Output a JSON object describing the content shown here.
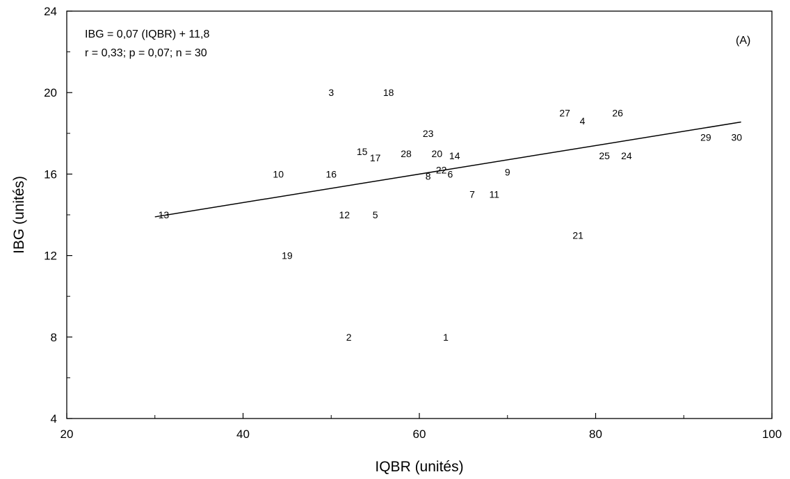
{
  "chart_data": {
    "type": "scatter",
    "xlabel": "IQBR (unités)",
    "ylabel": "IBG (unités)",
    "xlim": [
      20,
      100
    ],
    "ylim": [
      4,
      24
    ],
    "xticks": [
      20,
      40,
      60,
      80,
      100
    ],
    "yticks": [
      4,
      8,
      12,
      16,
      20,
      24
    ],
    "grid": false,
    "panel_label": "(A)",
    "annotations": [
      "IBG = 0,07 (IQBR) + 11,8",
      "r =  0,33;  p = 0,07;  n = 30"
    ],
    "regression": {
      "slope": 0.07,
      "intercept": 11.8,
      "x_range": [
        30,
        96.5
      ]
    },
    "points": [
      {
        "label": "1",
        "x": 63,
        "y": 8
      },
      {
        "label": "2",
        "x": 52,
        "y": 8
      },
      {
        "label": "3",
        "x": 50,
        "y": 20
      },
      {
        "label": "4",
        "x": 78.5,
        "y": 18.6
      },
      {
        "label": "5",
        "x": 55,
        "y": 14
      },
      {
        "label": "6",
        "x": 63.5,
        "y": 16
      },
      {
        "label": "7",
        "x": 66,
        "y": 15
      },
      {
        "label": "8",
        "x": 61,
        "y": 15.9
      },
      {
        "label": "9",
        "x": 70,
        "y": 16.1
      },
      {
        "label": "10",
        "x": 44,
        "y": 16
      },
      {
        "label": "11",
        "x": 68.5,
        "y": 15
      },
      {
        "label": "12",
        "x": 51.5,
        "y": 14
      },
      {
        "label": "13",
        "x": 31,
        "y": 14
      },
      {
        "label": "14",
        "x": 64,
        "y": 16.9
      },
      {
        "label": "15",
        "x": 53.5,
        "y": 17.1
      },
      {
        "label": "16",
        "x": 50,
        "y": 16
      },
      {
        "label": "17",
        "x": 55,
        "y": 16.8
      },
      {
        "label": "18",
        "x": 56.5,
        "y": 20
      },
      {
        "label": "19",
        "x": 45,
        "y": 12
      },
      {
        "label": "20",
        "x": 62,
        "y": 17
      },
      {
        "label": "21",
        "x": 78,
        "y": 13
      },
      {
        "label": "22",
        "x": 62.5,
        "y": 16.2
      },
      {
        "label": "23",
        "x": 61,
        "y": 18
      },
      {
        "label": "24",
        "x": 83.5,
        "y": 16.9
      },
      {
        "label": "25",
        "x": 81,
        "y": 16.9
      },
      {
        "label": "26",
        "x": 82.5,
        "y": 19
      },
      {
        "label": "27",
        "x": 76.5,
        "y": 19
      },
      {
        "label": "28",
        "x": 58.5,
        "y": 17
      },
      {
        "label": "29",
        "x": 92.5,
        "y": 17.8
      },
      {
        "label": "30",
        "x": 96,
        "y": 17.8
      }
    ]
  }
}
